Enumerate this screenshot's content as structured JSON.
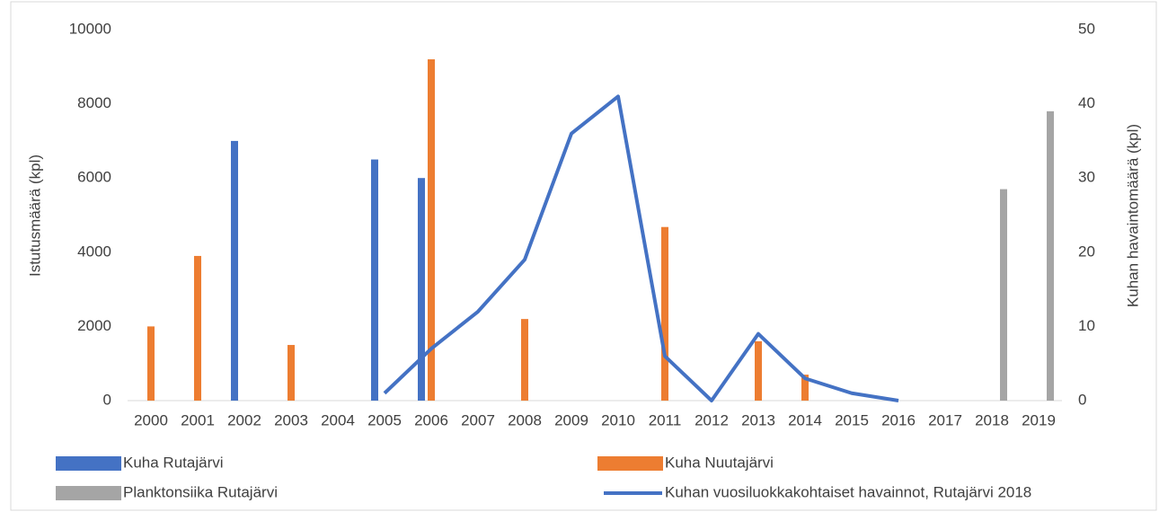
{
  "chart_data": {
    "type": "bar",
    "categories": [
      "2000",
      "2001",
      "2002",
      "2003",
      "2004",
      "2005",
      "2006",
      "2007",
      "2008",
      "2009",
      "2010",
      "2011",
      "2012",
      "2013",
      "2014",
      "2015",
      "2016",
      "2017",
      "2018",
      "2019"
    ],
    "series": [
      {
        "name": "Kuha Rutajärvi",
        "color": "#4472c4",
        "values": [
          null,
          null,
          7000,
          null,
          null,
          6500,
          6000,
          null,
          null,
          null,
          null,
          null,
          null,
          null,
          null,
          null,
          null,
          null,
          null,
          null
        ]
      },
      {
        "name": "Kuha Nuutajärvi",
        "color": "#ed7d31",
        "values": [
          2000,
          3900,
          null,
          1500,
          null,
          null,
          9200,
          null,
          2200,
          null,
          null,
          4680,
          null,
          1600,
          700,
          null,
          null,
          null,
          null,
          null
        ]
      },
      {
        "name": "Planktonsiika Rutajärvi",
        "color": "#a5a5a5",
        "values": [
          null,
          null,
          null,
          null,
          null,
          null,
          null,
          null,
          null,
          null,
          null,
          null,
          null,
          null,
          null,
          null,
          null,
          null,
          5700,
          7800
        ]
      },
      {
        "name": "Kuhan vuosiluokkakohtaiset havainnot, Rutajärvi 2018",
        "color": "#4472c4",
        "type": "line",
        "axis": "y2",
        "values": [
          null,
          null,
          null,
          null,
          null,
          1,
          7,
          12,
          19,
          36,
          41,
          6,
          0,
          9,
          3,
          1,
          0,
          null,
          null,
          null
        ]
      }
    ],
    "ylabel": "Istutusmäärä (kpl)",
    "y2label": "Kuhan havaintomäärä (kpl)",
    "ylim": [
      0,
      10000
    ],
    "yticks": [
      0,
      2000,
      4000,
      6000,
      8000,
      10000
    ],
    "y2lim": [
      0,
      50
    ],
    "y2ticks": [
      0,
      10,
      20,
      30,
      40,
      50
    ],
    "grid": false,
    "legend": "bottom"
  }
}
